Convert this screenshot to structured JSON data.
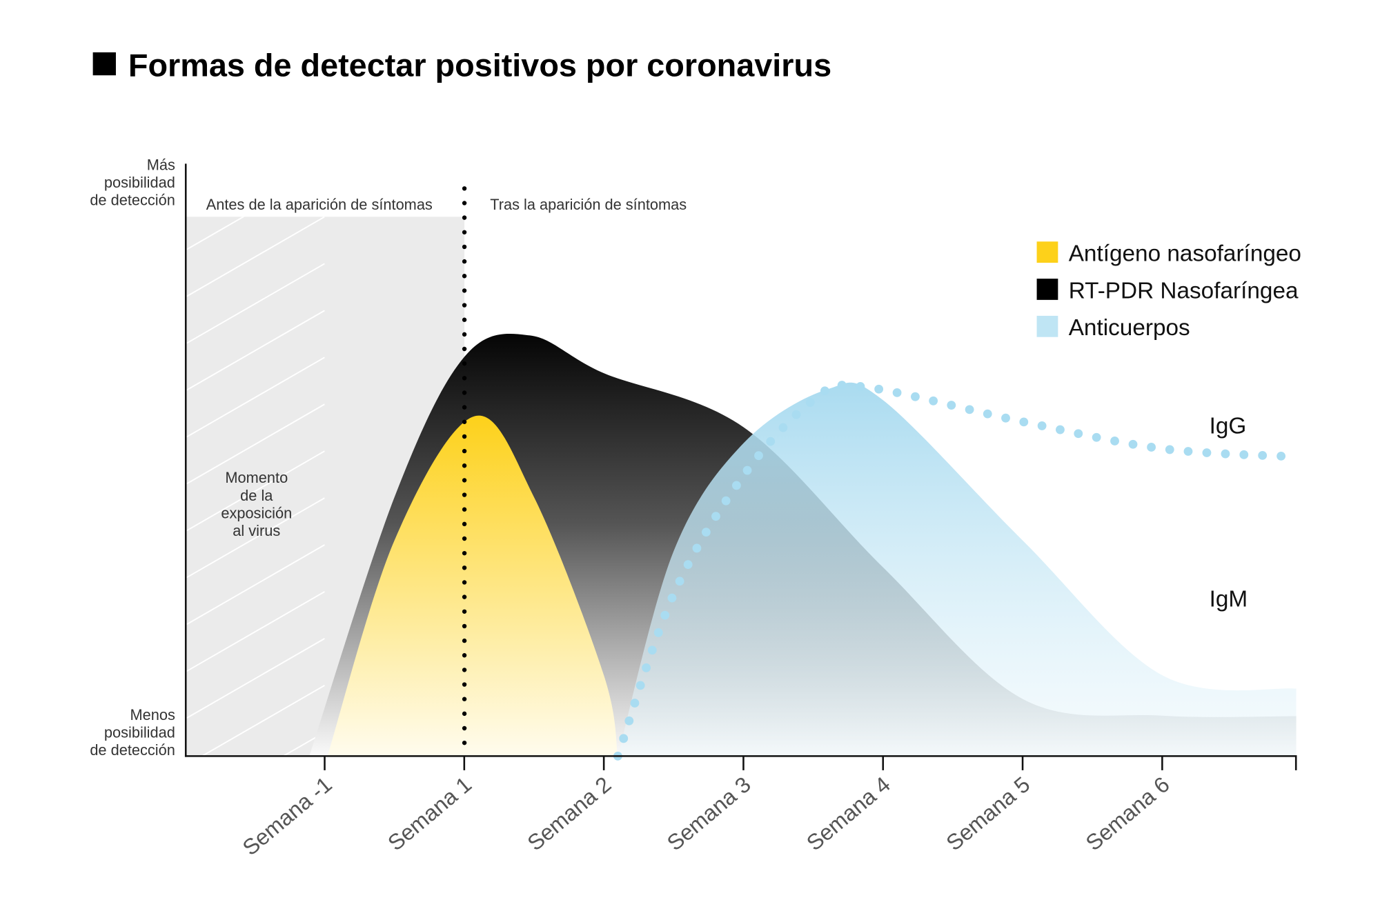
{
  "title": "Formas de detectar positivos por coronavirus",
  "chart_data": {
    "type": "area",
    "title": "Formas de detectar positivos por coronavirus",
    "ylabel_top": [
      "Más",
      "posibilidad",
      "de detección"
    ],
    "ylabel_bottom": [
      "Menos",
      "posibilidad",
      "de detección"
    ],
    "categories": [
      "Semana -1",
      "Semana 1",
      "Semana 2",
      "Semana 3",
      "Semana 4",
      "Semana 5",
      "Semana 6"
    ],
    "y_scale": "qualitative, relative detection 0-100",
    "regions": {
      "before": "Antes de la aparición de síntomas",
      "after": "Tras la aparición de síntomas",
      "exposure": [
        "Momento",
        "de la",
        "exposición",
        "al virus"
      ]
    },
    "legend": [
      {
        "name": "Antígeno nasofaríngeo",
        "color": "#fdd11a"
      },
      {
        "name": "RT-PDR Nasofaríngea",
        "color": "#000000"
      },
      {
        "name": "Anticuerpos",
        "color": "#bfe5f4"
      }
    ],
    "legend_placement": "top-right",
    "series": [
      {
        "name": "RT-PDR Nasofaríngea",
        "color": "#0a0a0a",
        "points": [
          [
            -0.11,
            0
          ],
          [
            0.5,
            48
          ],
          [
            1,
            74
          ],
          [
            1.47,
            78
          ],
          [
            2,
            71
          ],
          [
            3,
            61
          ],
          [
            4,
            35
          ],
          [
            5,
            10.6
          ],
          [
            6,
            7.5
          ],
          [
            6.96,
            7.4
          ]
        ]
      },
      {
        "name": "Antígeno nasofaríngeo",
        "color": "#fdd11a",
        "points": [
          [
            0.02,
            0
          ],
          [
            0.5,
            40
          ],
          [
            1.07,
            63
          ],
          [
            1.5,
            48
          ],
          [
            2,
            15
          ],
          [
            2.1,
            0
          ]
        ]
      },
      {
        "name": "IgM",
        "color": "#a9dcf1",
        "points": [
          [
            2.1,
            0
          ],
          [
            2.5,
            38
          ],
          [
            3,
            58
          ],
          [
            3.6,
            68
          ],
          [
            4,
            66
          ],
          [
            5,
            40
          ],
          [
            6,
            15
          ],
          [
            6.96,
            12.5
          ]
        ]
      },
      {
        "name": "IgG",
        "color": "#a9dcf1",
        "style": "dotted",
        "points": [
          [
            2.1,
            0
          ],
          [
            2.5,
            30
          ],
          [
            3,
            52
          ],
          [
            3.5,
            66
          ],
          [
            3.85,
            68.5
          ],
          [
            5,
            62
          ],
          [
            6,
            57
          ],
          [
            6.96,
            55.5
          ]
        ]
      }
    ],
    "series_labels": [
      "IgG",
      "IgM"
    ]
  }
}
